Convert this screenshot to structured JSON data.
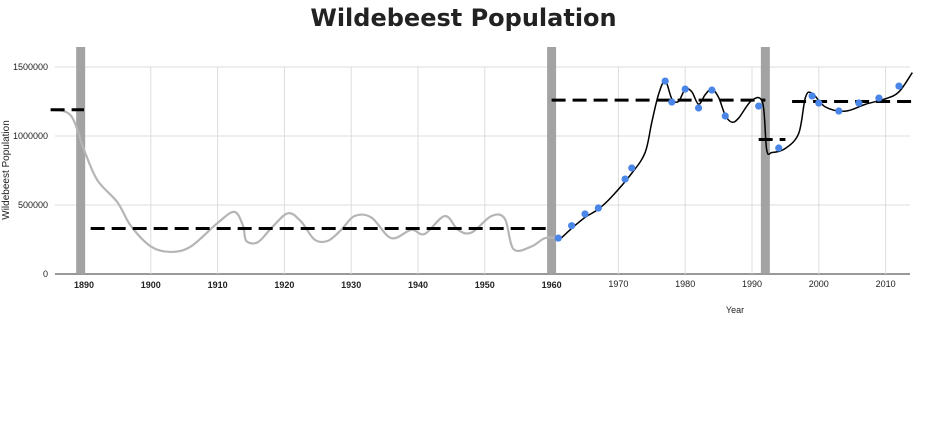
{
  "chart_data": {
    "type": "line",
    "title": "Wildebeest Population",
    "xlabel": "Year",
    "ylabel": "Wildebeest Population",
    "xlim": [
      1885,
      2014
    ],
    "ylim": [
      0,
      1500000
    ],
    "grid": true,
    "y_ticks": [
      "0",
      "500000",
      "1000000",
      "1500000"
    ],
    "x_ticks": [
      "1890",
      "1900",
      "1910",
      "1920",
      "1930",
      "1940",
      "1950",
      "1960",
      "1970",
      "1980",
      "1990",
      "2000",
      "2010"
    ],
    "series": [
      {
        "type": "line",
        "color": "#b5b5b5",
        "x": [
          1885,
          1888,
          1890,
          1892,
          1895,
          1897,
          1900,
          1903,
          1906,
          1910,
          1912.5,
          1913.8,
          1914.3,
          1916,
          1918,
          1920.5,
          1922.5,
          1924.5,
          1926.5,
          1928.5,
          1930.5,
          1933,
          1936,
          1939,
          1941,
          1944,
          1946,
          1948,
          1951,
          1953,
          1954.3,
          1957,
          1959,
          1961
        ],
        "y": [
          1190000,
          1150000,
          900000,
          680000,
          520000,
          350000,
          200000,
          160000,
          200000,
          370000,
          450000,
          350000,
          240000,
          230000,
          330000,
          440000,
          380000,
          250000,
          240000,
          320000,
          420000,
          410000,
          260000,
          320000,
          290000,
          420000,
          320000,
          300000,
          420000,
          400000,
          180000,
          200000,
          260000,
          260000
        ]
      },
      {
        "type": "line",
        "color": "#000000",
        "x": [
          1961,
          1963,
          1965,
          1967,
          1969,
          1972,
          1974,
          1975,
          1976,
          1977,
          1978,
          1979,
          1980,
          1981,
          1982,
          1983,
          1984,
          1985,
          1986,
          1987,
          1988,
          1990,
          1991.6,
          1992.2,
          1993,
          1995,
          1997,
          1998,
          1999,
          2001,
          2004,
          2007,
          2010,
          2012,
          2014
        ],
        "y": [
          240000,
          330000,
          410000,
          470000,
          560000,
          730000,
          880000,
          1100000,
          1300000,
          1400000,
          1270000,
          1250000,
          1340000,
          1320000,
          1230000,
          1300000,
          1340000,
          1280000,
          1150000,
          1100000,
          1130000,
          1260000,
          1240000,
          900000,
          880000,
          910000,
          1020000,
          1280000,
          1310000,
          1210000,
          1180000,
          1230000,
          1270000,
          1320000,
          1460000
        ]
      },
      {
        "type": "scatter",
        "color": "#4a86e8",
        "x": [
          1961,
          1963,
          1965,
          1967,
          1971,
          1972,
          1977,
          1978,
          1980,
          1982,
          1984,
          1986,
          1991,
          1994,
          1999,
          2000,
          2003,
          2006,
          2009,
          2012
        ],
        "y": [
          260000,
          350000,
          435000,
          478000,
          688000,
          768000,
          1398000,
          1246000,
          1340000,
          1203000,
          1333000,
          1145000,
          1217000,
          913000,
          1290000,
          1239000,
          1181000,
          1239000,
          1275000,
          1362000
        ]
      }
    ],
    "mean_lines": [
      {
        "x": [
          1885,
          1890
        ],
        "y": 1190000
      },
      {
        "x": [
          1891,
          1960
        ],
        "y": 330000
      },
      {
        "x": [
          1960,
          1992
        ],
        "y": 1260000
      },
      {
        "x": [
          1991,
          1995
        ],
        "y": 975000
      },
      {
        "x": [
          1996,
          2014
        ],
        "y": 1250000
      }
    ],
    "breakpoints": [
      1889.5,
      1960,
      1992
    ],
    "breakpoint_color": "#9e9e9e"
  }
}
